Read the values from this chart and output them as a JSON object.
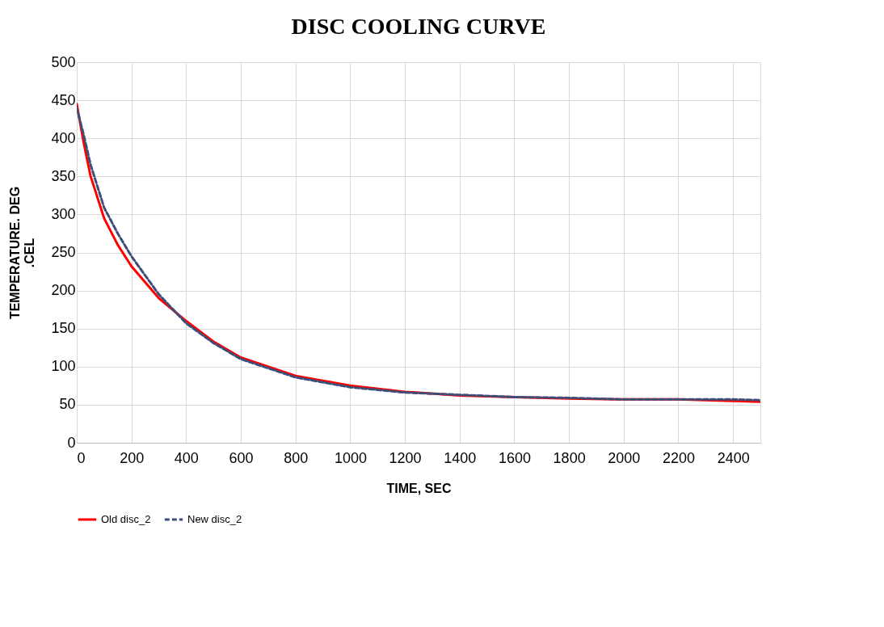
{
  "chart_data": {
    "type": "line",
    "title": "DISC COOLING CURVE",
    "xlabel": "TIME, SEC",
    "ylabel": "TEMPERATURE. DEG .CEL",
    "x": [
      0,
      25,
      50,
      100,
      150,
      200,
      300,
      400,
      500,
      600,
      800,
      1000,
      1200,
      1400,
      1600,
      1800,
      2000,
      2200,
      2400,
      2500
    ],
    "series": [
      {
        "name": "Old disc_2",
        "color": "#ff0000",
        "line_style": "solid",
        "values": [
          445,
          395,
          351,
          295,
          260,
          232,
          190,
          160,
          133,
          112,
          88,
          75,
          67,
          62,
          60,
          58,
          57,
          57,
          55,
          54
        ]
      },
      {
        "name": "New disc_2",
        "color": "#3a4f7a",
        "line_style": "dashed",
        "values": [
          440,
          405,
          366,
          309,
          275,
          245,
          195,
          157,
          131,
          110,
          86,
          73,
          66,
          63,
          60,
          59,
          57,
          57,
          57,
          56
        ]
      }
    ],
    "xlim": [
      0,
      2500
    ],
    "xticks": [
      0,
      200,
      400,
      600,
      800,
      1000,
      1200,
      1400,
      1600,
      1800,
      2000,
      2200,
      2400
    ],
    "ylim": [
      0,
      500
    ],
    "yticks": [
      0,
      50,
      100,
      150,
      200,
      250,
      300,
      350,
      400,
      450,
      500
    ],
    "grid": true,
    "legend": "bottom"
  }
}
